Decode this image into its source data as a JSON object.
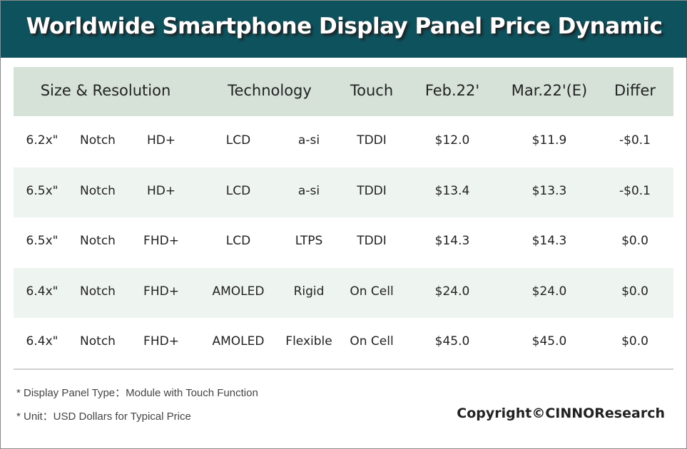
{
  "title": "Worldwide Smartphone Display Panel Price Dynamic",
  "chart_data": {
    "type": "table",
    "title": "Worldwide Smartphone Display Panel Price Dynamic",
    "headers": [
      "Size & Resolution",
      "Technology",
      "Touch",
      "Feb.22'",
      "Mar.22'(E)",
      "Differ"
    ],
    "rows": [
      [
        "6.2x\"",
        "Notch",
        "HD+",
        "LCD",
        "a-si",
        "TDDI",
        "$12.0",
        "$11.9",
        "-$0.1"
      ],
      [
        "6.5x\"",
        "Notch",
        "HD+",
        "LCD",
        "a-si",
        "TDDI",
        "$13.4",
        "$13.3",
        "-$0.1"
      ],
      [
        "6.5x\"",
        "Notch",
        "FHD+",
        "LCD",
        "LTPS",
        "TDDI",
        "$14.3",
        "$14.3",
        "$0.0"
      ],
      [
        "6.4x\"",
        "Notch",
        "FHD+",
        "AMOLED",
        "Rigid",
        "On Cell",
        "$24.0",
        "$24.0",
        "$0.0"
      ],
      [
        "6.4x\"",
        "Notch",
        "FHD+",
        "AMOLED",
        "Flexible",
        "On Cell",
        "$45.0",
        "$45.0",
        "$0.0"
      ]
    ]
  },
  "notes": [
    "* Display Panel Type：Module with Touch Function",
    "* Unit：USD Dollars for Typical Price"
  ],
  "copyright": "Copyright©CINNOResearch",
  "colors": {
    "title_bg": "#0e525e",
    "header_bg": "#d6e2d8",
    "stripe": "#eef4ef"
  }
}
